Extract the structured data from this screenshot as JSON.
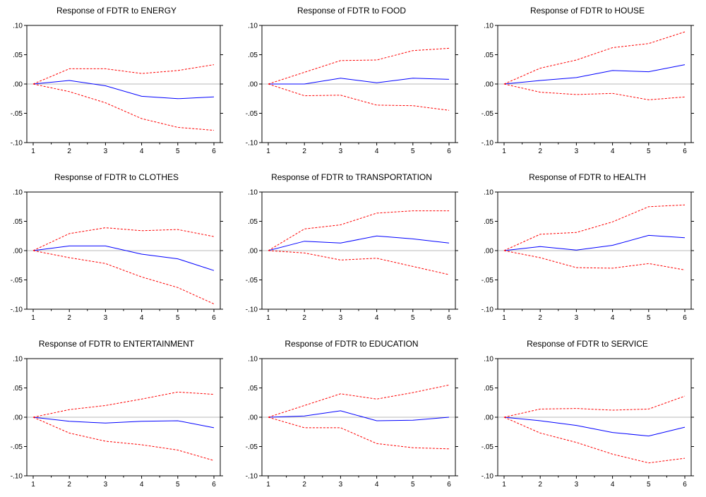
{
  "chart_data": [
    {
      "type": "line",
      "title": "Response of FDTR to ENERGY",
      "x": [
        1,
        2,
        3,
        4,
        5,
        6
      ],
      "ylim": [
        -0.1,
        0.1
      ],
      "yticks": [
        ".10",
        ".05",
        ".00",
        "-.05",
        "-.10"
      ],
      "xticks": [
        "1",
        "2",
        "3",
        "4",
        "5",
        "6"
      ],
      "series": [
        {
          "style": "solid",
          "color": "#0000ff",
          "values": [
            0.0,
            0.006,
            -0.003,
            -0.021,
            -0.025,
            -0.022
          ]
        },
        {
          "style": "dashed",
          "color": "#ff0000",
          "values": [
            0.0,
            0.026,
            0.026,
            0.018,
            0.023,
            0.033
          ]
        },
        {
          "style": "dashed",
          "color": "#ff0000",
          "values": [
            0.0,
            -0.013,
            -0.032,
            -0.059,
            -0.074,
            -0.079
          ]
        }
      ]
    },
    {
      "type": "line",
      "title": "Response of FDTR to FOOD",
      "x": [
        1,
        2,
        3,
        4,
        5,
        6
      ],
      "ylim": [
        -0.1,
        0.1
      ],
      "yticks": [
        ".10",
        ".05",
        ".00",
        "-.05",
        "-.10"
      ],
      "xticks": [
        "1",
        "2",
        "3",
        "4",
        "5",
        "6"
      ],
      "series": [
        {
          "style": "solid",
          "color": "#0000ff",
          "values": [
            0.0,
            0.0,
            0.01,
            0.002,
            0.01,
            0.008
          ]
        },
        {
          "style": "dashed",
          "color": "#ff0000",
          "values": [
            0.0,
            0.02,
            0.04,
            0.041,
            0.057,
            0.061
          ]
        },
        {
          "style": "dashed",
          "color": "#ff0000",
          "values": [
            0.0,
            -0.02,
            -0.019,
            -0.036,
            -0.037,
            -0.045
          ]
        }
      ]
    },
    {
      "type": "line",
      "title": "Response of FDTR to HOUSE",
      "x": [
        1,
        2,
        3,
        4,
        5,
        6
      ],
      "ylim": [
        -0.1,
        0.1
      ],
      "yticks": [
        ".10",
        ".05",
        ".00",
        "-.05",
        "-.10"
      ],
      "xticks": [
        "1",
        "2",
        "3",
        "4",
        "5",
        "6"
      ],
      "series": [
        {
          "style": "solid",
          "color": "#0000ff",
          "values": [
            0.0,
            0.006,
            0.011,
            0.023,
            0.021,
            0.033
          ]
        },
        {
          "style": "dashed",
          "color": "#ff0000",
          "values": [
            0.0,
            0.027,
            0.041,
            0.062,
            0.069,
            0.089
          ]
        },
        {
          "style": "dashed",
          "color": "#ff0000",
          "values": [
            0.0,
            -0.014,
            -0.018,
            -0.016,
            -0.027,
            -0.022
          ]
        }
      ]
    },
    {
      "type": "line",
      "title": "Response of FDTR to CLOTHES",
      "x": [
        1,
        2,
        3,
        4,
        5,
        6
      ],
      "ylim": [
        -0.1,
        0.1
      ],
      "yticks": [
        ".10",
        ".05",
        ".00",
        "-.05",
        "-.10"
      ],
      "xticks": [
        "1",
        "2",
        "3",
        "4",
        "5",
        "6"
      ],
      "series": [
        {
          "style": "solid",
          "color": "#0000ff",
          "values": [
            0.0,
            0.008,
            0.008,
            -0.006,
            -0.014,
            -0.034
          ]
        },
        {
          "style": "dashed",
          "color": "#ff0000",
          "values": [
            0.0,
            0.029,
            0.039,
            0.034,
            0.036,
            0.024
          ]
        },
        {
          "style": "dashed",
          "color": "#ff0000",
          "values": [
            0.0,
            -0.012,
            -0.022,
            -0.045,
            -0.063,
            -0.091
          ]
        }
      ]
    },
    {
      "type": "line",
      "title": "Response of FDTR to TRANSPORTATION",
      "x": [
        1,
        2,
        3,
        4,
        5,
        6
      ],
      "ylim": [
        -0.1,
        0.1
      ],
      "yticks": [
        ".10",
        ".05",
        ".00",
        "-.05",
        "-.10"
      ],
      "xticks": [
        "1",
        "2",
        "3",
        "4",
        "5",
        "6"
      ],
      "series": [
        {
          "style": "solid",
          "color": "#0000ff",
          "values": [
            0.0,
            0.016,
            0.013,
            0.025,
            0.02,
            0.013
          ]
        },
        {
          "style": "dashed",
          "color": "#ff0000",
          "values": [
            0.0,
            0.037,
            0.044,
            0.064,
            0.068,
            0.068
          ]
        },
        {
          "style": "dashed",
          "color": "#ff0000",
          "values": [
            0.0,
            -0.004,
            -0.016,
            -0.013,
            -0.027,
            -0.041
          ]
        }
      ]
    },
    {
      "type": "line",
      "title": "Response of FDTR to HEALTH",
      "x": [
        1,
        2,
        3,
        4,
        5,
        6
      ],
      "ylim": [
        -0.1,
        0.1
      ],
      "yticks": [
        ".10",
        ".05",
        ".00",
        "-.05",
        "-.10"
      ],
      "xticks": [
        "1",
        "2",
        "3",
        "4",
        "5",
        "6"
      ],
      "series": [
        {
          "style": "solid",
          "color": "#0000ff",
          "values": [
            0.0,
            0.007,
            0.001,
            0.009,
            0.026,
            0.022
          ]
        },
        {
          "style": "dashed",
          "color": "#ff0000",
          "values": [
            0.0,
            0.028,
            0.031,
            0.049,
            0.075,
            0.078
          ]
        },
        {
          "style": "dashed",
          "color": "#ff0000",
          "values": [
            0.0,
            -0.012,
            -0.029,
            -0.03,
            -0.022,
            -0.033
          ]
        }
      ]
    },
    {
      "type": "line",
      "title": "Response of FDTR to ENTERTAINMENT",
      "x": [
        1,
        2,
        3,
        4,
        5,
        6
      ],
      "ylim": [
        -0.1,
        0.1
      ],
      "yticks": [
        ".10",
        ".05",
        ".00",
        "-.05",
        "-.10"
      ],
      "xticks": [
        "1",
        "2",
        "3",
        "4",
        "5",
        "6"
      ],
      "series": [
        {
          "style": "solid",
          "color": "#0000ff",
          "values": [
            0.0,
            -0.007,
            -0.01,
            -0.007,
            -0.006,
            -0.018
          ]
        },
        {
          "style": "dashed",
          "color": "#ff0000",
          "values": [
            0.0,
            0.013,
            0.02,
            0.031,
            0.043,
            0.039
          ]
        },
        {
          "style": "dashed",
          "color": "#ff0000",
          "values": [
            0.0,
            -0.027,
            -0.041,
            -0.047,
            -0.056,
            -0.074
          ]
        }
      ]
    },
    {
      "type": "line",
      "title": "Response of FDTR to EDUCATION",
      "x": [
        1,
        2,
        3,
        4,
        5,
        6
      ],
      "ylim": [
        -0.1,
        0.1
      ],
      "yticks": [
        ".10",
        ".05",
        ".00",
        "-.05",
        "-.10"
      ],
      "xticks": [
        "1",
        "2",
        "3",
        "4",
        "5",
        "6"
      ],
      "series": [
        {
          "style": "solid",
          "color": "#0000ff",
          "values": [
            0.0,
            0.002,
            0.011,
            -0.006,
            -0.005,
            0.0
          ]
        },
        {
          "style": "dashed",
          "color": "#ff0000",
          "values": [
            0.0,
            0.02,
            0.04,
            0.031,
            0.042,
            0.055
          ]
        },
        {
          "style": "dashed",
          "color": "#ff0000",
          "values": [
            0.0,
            -0.018,
            -0.018,
            -0.045,
            -0.052,
            -0.054
          ]
        }
      ]
    },
    {
      "type": "line",
      "title": "Response of FDTR to SERVICE",
      "x": [
        1,
        2,
        3,
        4,
        5,
        6
      ],
      "ylim": [
        -0.1,
        0.1
      ],
      "yticks": [
        ".10",
        ".05",
        ".00",
        "-.05",
        "-.10"
      ],
      "xticks": [
        "1",
        "2",
        "3",
        "4",
        "5",
        "6"
      ],
      "series": [
        {
          "style": "solid",
          "color": "#0000ff",
          "values": [
            0.0,
            -0.006,
            -0.014,
            -0.026,
            -0.032,
            -0.017
          ]
        },
        {
          "style": "dashed",
          "color": "#ff0000",
          "values": [
            0.0,
            0.014,
            0.015,
            0.012,
            0.014,
            0.036
          ]
        },
        {
          "style": "dashed",
          "color": "#ff0000",
          "values": [
            0.0,
            -0.027,
            -0.043,
            -0.063,
            -0.078,
            -0.07
          ]
        }
      ]
    }
  ]
}
